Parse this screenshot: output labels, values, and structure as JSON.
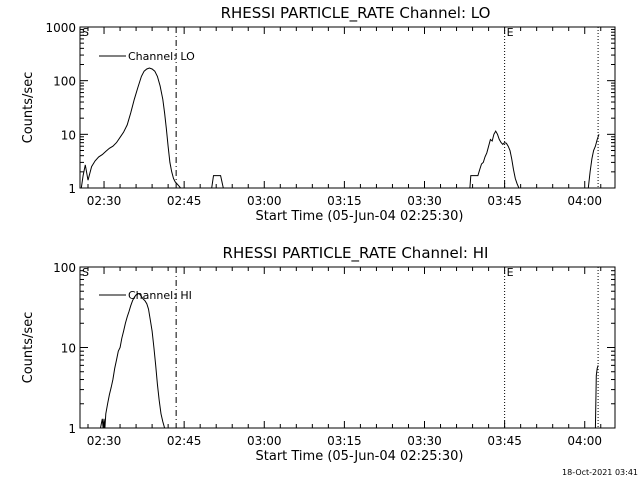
{
  "footer_timestamp": "18-Oct-2021 03:41",
  "chart_data": [
    {
      "type": "line",
      "title": "RHESSI PARTICLE_RATE Channel: LO",
      "xlabel": "Start Time (05-Jun-04 02:25:30)",
      "ylabel": "Counts/sec",
      "yscale": "log",
      "ylim": [
        1,
        1000
      ],
      "xlim": [
        "02:25:30",
        "04:05:40"
      ],
      "x_ticks": [
        "02:30",
        "02:45",
        "03:00",
        "03:15",
        "03:30",
        "03:45",
        "04:00"
      ],
      "y_ticks": [
        "1",
        "10",
        "100",
        "1000"
      ],
      "legend": "Channel: LO",
      "markers": [
        {
          "label": "S",
          "x": "02:25:30",
          "style": "none"
        },
        {
          "label": "",
          "x": "02:43:30",
          "style": "dash-dot"
        },
        {
          "label": "E",
          "x": "03:45:00",
          "style": "dotted"
        },
        {
          "label": "",
          "x": "04:02:30",
          "style": "dotted"
        }
      ],
      "series": [
        {
          "segments": [
            {
              "x": [
                "02:25:45",
                "02:26:05",
                "02:26:30",
                "02:27:00",
                "02:27:40",
                "02:28:20",
                "02:29:00",
                "02:29:40",
                "02:30:20",
                "02:31:00",
                "02:31:40",
                "02:32:20",
                "02:33:00",
                "02:33:40",
                "02:34:20",
                "02:35:00",
                "02:35:40",
                "02:36:20",
                "02:37:00",
                "02:37:30",
                "02:38:00",
                "02:38:30",
                "02:39:00",
                "02:39:30",
                "02:40:00",
                "02:40:30",
                "02:41:00",
                "02:41:20",
                "02:41:40",
                "02:42:00",
                "02:42:20",
                "02:42:40",
                "02:43:00",
                "02:43:20",
                "02:43:40",
                "02:44:00",
                "02:44:20"
              ],
              "y": [
                1.0,
                1.7,
                2.7,
                1.4,
                2.5,
                3.2,
                3.8,
                4.2,
                4.8,
                5.5,
                6.0,
                7.0,
                8.8,
                11,
                15,
                25,
                45,
                75,
                120,
                150,
                165,
                172,
                165,
                150,
                120,
                80,
                45,
                25,
                13,
                6,
                3,
                2,
                1.5,
                1.3,
                1.2,
                1.1,
                1.0
              ]
            },
            {
              "x": [
                "02:50:10",
                "02:50:30",
                "02:51:50",
                "02:52:20"
              ],
              "y": [
                1.0,
                1.7,
                1.7,
                1.0
              ]
            },
            {
              "x": [
                "03:38:30",
                "03:38:40",
                "03:40:00",
                "03:40:20",
                "03:40:40",
                "03:41:00",
                "03:41:20",
                "03:41:40",
                "03:42:00",
                "03:42:20",
                "03:42:40",
                "03:43:00",
                "03:43:20",
                "03:43:40",
                "03:44:00",
                "03:44:20",
                "03:44:40",
                "03:45:00",
                "03:45:20",
                "03:45:40",
                "03:46:00",
                "03:46:20",
                "03:46:40",
                "03:47:00",
                "03:47:20",
                "03:47:40"
              ],
              "y": [
                1.0,
                1.7,
                1.7,
                2.2,
                2.8,
                3.0,
                3.8,
                4.5,
                6,
                8,
                7.5,
                10,
                11.5,
                10,
                8,
                7,
                6.5,
                7,
                6.8,
                6,
                5,
                3.5,
                2.2,
                1.5,
                1.2,
                1.0
              ]
            },
            {
              "x": [
                "04:00:40",
                "04:01:00",
                "04:01:20",
                "04:01:40",
                "04:02:00",
                "04:02:20",
                "04:02:40"
              ],
              "y": [
                1.0,
                2.0,
                3.5,
                5,
                6,
                8,
                10
              ]
            }
          ]
        }
      ]
    },
    {
      "type": "line",
      "title": "RHESSI PARTICLE_RATE Channel: HI",
      "xlabel": "Start Time (05-Jun-04 02:25:30)",
      "ylabel": "Counts/sec",
      "yscale": "log",
      "ylim": [
        1,
        100
      ],
      "xlim": [
        "02:25:30",
        "04:05:40"
      ],
      "x_ticks": [
        "02:30",
        "02:45",
        "03:00",
        "03:15",
        "03:30",
        "03:45",
        "04:00"
      ],
      "y_ticks": [
        "1",
        "10",
        "100"
      ],
      "legend": "Channel: HI",
      "markers": [
        {
          "label": "S",
          "x": "02:25:30",
          "style": "none"
        },
        {
          "label": "",
          "x": "02:43:30",
          "style": "dash-dot"
        },
        {
          "label": "E",
          "x": "03:45:00",
          "style": "dotted"
        },
        {
          "label": "",
          "x": "04:02:30",
          "style": "dotted"
        }
      ],
      "series": [
        {
          "segments": [
            {
              "x": [
                "02:29:20",
                "02:29:40",
                "02:29:50",
                "02:30:00",
                "02:30:10",
                "02:30:20",
                "02:30:40",
                "02:31:00",
                "02:31:20",
                "02:31:40",
                "02:32:00",
                "02:32:20",
                "02:32:40",
                "02:33:00",
                "02:33:20",
                "02:33:40",
                "02:34:00",
                "02:34:20",
                "02:34:40",
                "02:35:00",
                "02:35:20",
                "02:35:40",
                "02:36:00",
                "02:36:20",
                "02:36:40",
                "02:37:00",
                "02:37:20",
                "02:37:40",
                "02:38:00",
                "02:38:20",
                "02:38:40",
                "02:39:00",
                "02:39:20",
                "02:39:40",
                "02:40:00",
                "02:40:20",
                "02:40:40",
                "02:41:00",
                "02:41:20"
              ],
              "y": [
                1.0,
                1.3,
                1.0,
                1.3,
                1.0,
                1.5,
                2.0,
                2.6,
                3.2,
                4.0,
                5.5,
                7,
                9,
                10,
                13,
                16,
                20,
                24,
                28,
                33,
                38,
                42,
                45,
                47,
                46,
                43,
                40,
                38,
                35,
                30,
                22,
                16,
                10,
                6,
                3.5,
                2.2,
                1.5,
                1.2,
                1.0
              ]
            },
            {
              "x": [
                "04:02:00",
                "04:02:10",
                "04:02:20",
                "04:02:30"
              ],
              "y": [
                1.0,
                4.5,
                5.5,
                6.0
              ]
            }
          ]
        }
      ]
    }
  ]
}
